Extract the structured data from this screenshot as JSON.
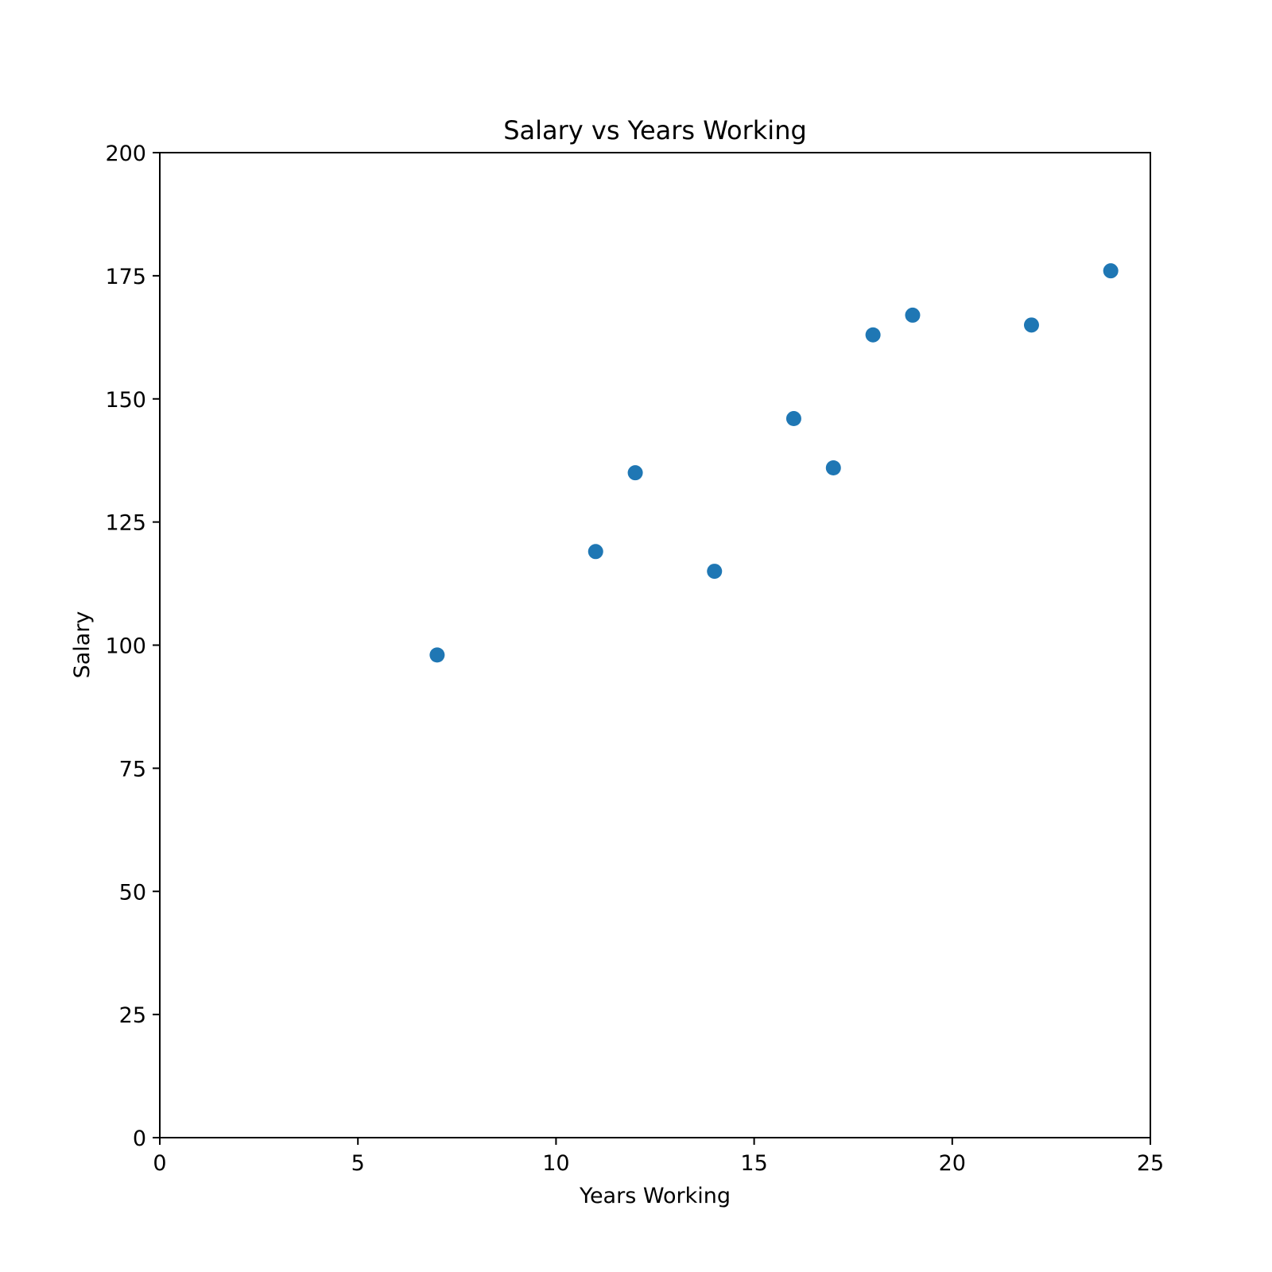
{
  "chart_data": {
    "type": "scatter",
    "title": "Salary vs Years Working",
    "xlabel": "Years Working",
    "ylabel": "Salary",
    "xlim": [
      0,
      25
    ],
    "ylim": [
      0,
      200
    ],
    "xticks": [
      0,
      5,
      10,
      15,
      20,
      25
    ],
    "yticks": [
      0,
      25,
      50,
      75,
      100,
      125,
      150,
      175,
      200
    ],
    "grid": false,
    "legend": "none",
    "marker_color": "#1f77b4",
    "series": [
      {
        "x": [
          7,
          11,
          12,
          14,
          16,
          17,
          18,
          19,
          22,
          24
        ],
        "y": [
          98,
          119,
          135,
          115,
          146,
          136,
          163,
          167,
          165,
          176
        ]
      }
    ]
  }
}
